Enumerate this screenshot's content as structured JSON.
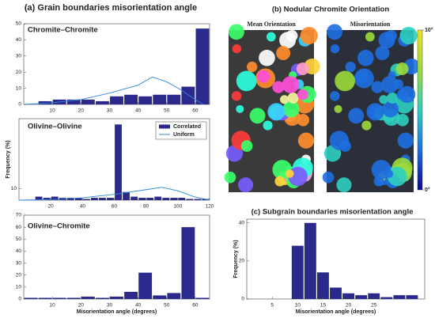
{
  "panel_a_title": "(a) Grain boundaries misorientation angle",
  "panel_b": {
    "title": "(b) Nodular Chromite Orientation",
    "left_label": "Mean Orientation",
    "right_label": "Misorientation",
    "colorbar": {
      "lim": [
        0,
        10
      ],
      "ticks": [
        {
          "value": 0,
          "label": "0°"
        },
        {
          "value": 10,
          "label": "10°"
        }
      ]
    }
  },
  "chart_data": [
    {
      "type": "histogram",
      "title": "Chromite–Chromite",
      "bins": [
        5,
        10,
        15,
        20,
        25,
        30,
        35,
        40,
        45,
        50,
        55,
        60,
        65
      ],
      "bars": {
        "color": "#2b2a8c",
        "values": [
          2,
          3,
          3,
          3,
          2,
          5,
          6,
          5,
          6,
          6,
          11,
          47
        ]
      },
      "curve": {
        "color": "#2e86de",
        "x": [
          0,
          10,
          20,
          30,
          40,
          45,
          50,
          55,
          60,
          62.8
        ],
        "values": [
          0,
          1,
          3,
          7,
          12,
          17,
          14,
          9,
          3,
          0
        ]
      },
      "xlim": [
        0,
        65
      ],
      "ylim": [
        0,
        50
      ],
      "xticks": [
        10,
        20,
        30,
        40,
        50,
        60
      ],
      "yticks": [
        0,
        10,
        20,
        30,
        40,
        50
      ]
    },
    {
      "type": "histogram",
      "title": "Olivine–Olivine",
      "ylabel": "Frequency (%)",
      "bins": [
        10,
        15,
        20,
        25,
        30,
        35,
        40,
        45,
        50,
        55,
        60,
        65,
        70,
        75,
        80,
        85,
        90,
        95,
        100,
        105,
        110,
        115,
        120
      ],
      "bars": {
        "name": "Correlated",
        "color": "#2b2a8c",
        "values": [
          3,
          2,
          3,
          2,
          2,
          2,
          1,
          2,
          2,
          2,
          65,
          7,
          3,
          2,
          2,
          3,
          2,
          2,
          2,
          1,
          1,
          1
        ]
      },
      "curve": {
        "name": "Uniform",
        "color": "#2e86de",
        "x": [
          0,
          20,
          40,
          60,
          80,
          90,
          100,
          110,
          120
        ],
        "values": [
          0,
          0.5,
          2,
          5,
          9,
          11,
          8,
          3,
          0
        ]
      },
      "xlim": [
        0,
        120
      ],
      "ylim": [
        0,
        70
      ],
      "xticks": [
        20,
        40,
        60,
        80,
        100,
        120
      ],
      "yticks": [
        10
      ],
      "legend": "upper right"
    },
    {
      "type": "histogram",
      "title": "Olivine–Chromite",
      "xlabel": "Misorientation angle (degrees)",
      "bins": [
        0,
        5,
        10,
        15,
        20,
        25,
        30,
        35,
        40,
        45,
        50,
        55,
        60,
        65
      ],
      "bars": {
        "color": "#2b2a8c",
        "values": [
          1,
          1,
          1,
          1,
          2,
          1,
          2,
          6,
          22,
          3,
          5,
          60,
          1
        ]
      },
      "xlim": [
        0,
        65
      ],
      "ylim": [
        0,
        70
      ],
      "xticks": [
        10,
        20,
        30,
        40,
        50,
        60
      ],
      "yticks": [
        0,
        10,
        20,
        30,
        40,
        50,
        60,
        70
      ]
    },
    {
      "type": "histogram",
      "title": "(c) Subgrain boundaries misorientation angle",
      "xlabel": "Misorientation angle (degrees)",
      "ylabel": "Frequency (%)",
      "bins": [
        8.75,
        11.25,
        13.75,
        16.25,
        18.75,
        21.25,
        23.75,
        26.25,
        28.75,
        31.25,
        33.75
      ],
      "bars": {
        "color": "#2b2a8c",
        "values": [
          28,
          40,
          14,
          6,
          3,
          2,
          3,
          1,
          2,
          2
        ]
      },
      "xlim": [
        0,
        35
      ],
      "ylim": [
        0,
        42
      ],
      "xticks": [
        5,
        10,
        15,
        20,
        25
      ],
      "yticks": [
        0,
        20,
        40
      ]
    }
  ]
}
